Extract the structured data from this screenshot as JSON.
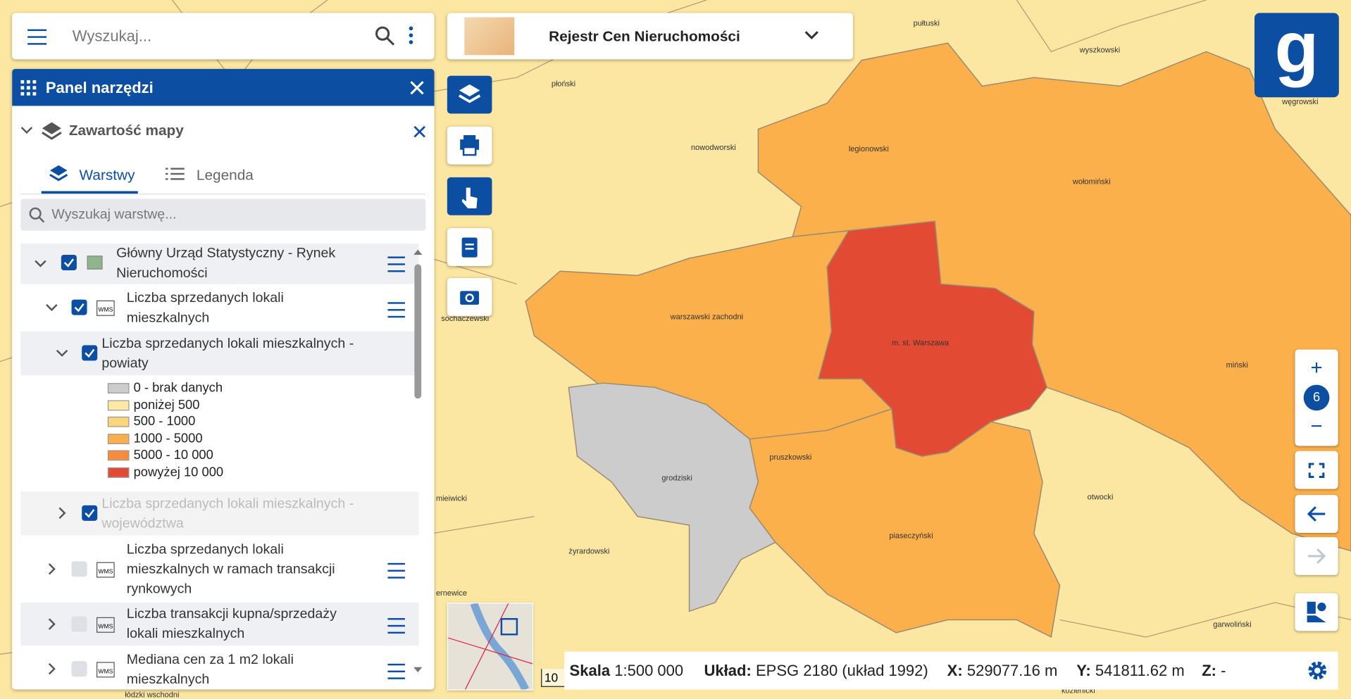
{
  "header": {
    "search_placeholder": "Wyszukaj...",
    "app_title": "Rejestr Cen Nieruchomości"
  },
  "panel": {
    "title": "Panel narzędzi",
    "section": "Zawartość mapy",
    "tabs": [
      "Warstwy",
      "Legenda"
    ],
    "layer_search": "Wyszukaj warstwę...",
    "layers": [
      "Główny Urząd Statystyczny - Rynek Nieruchomości",
      "Liczba sprzedanych lokali mieszkalnych",
      "Liczba sprzedanych lokali mieszkalnych - powiaty",
      "Liczba sprzedanych lokali mieszkalnych - województwa",
      "Liczba sprzedanych lokali mieszkalnych w ramach transakcji rynkowych",
      "Liczba transakcji kupna/sprzedaży lokali mieszkalnych",
      "Mediana cen za 1 m2 lokali mieszkalnych"
    ],
    "legend": [
      {
        "label": "0 - brak danych",
        "color": "#cccccc"
      },
      {
        "label": "poniżej 500",
        "color": "#fde9a3"
      },
      {
        "label": "500 - 1000",
        "color": "#fdd57a"
      },
      {
        "label": "1000 - 5000",
        "color": "#fbb04b"
      },
      {
        "label": "5000 - 10 000",
        "color": "#f78c3c"
      },
      {
        "label": "powyżej 10 000",
        "color": "#e34a33"
      }
    ]
  },
  "map": {
    "labels": [
      "płoński",
      "pułtuski",
      "wyszkowski",
      "węgrowski",
      "nowodworski",
      "legionowski",
      "wołomiński",
      "sochaczewski",
      "warszawski zachodni",
      "m. st. Warszawa",
      "miński",
      "grodziski",
      "pruszkowski",
      "otwocki",
      "żyrardowski",
      "piaseczyński",
      "garwoliński",
      "mieiwicki",
      "ernewice",
      "łódzki wschodni",
      "kozienicki"
    ],
    "zoom": "6",
    "scalebar": "10"
  },
  "status": {
    "scale_label": "Skala",
    "scale": "1:500 000",
    "crs_label": "Układ:",
    "crs": "EPSG 2180 (układ 1992)",
    "x_label": "X:",
    "x": "529077.16 m",
    "y_label": "Y:",
    "y": "541811.62 m",
    "z_label": "Z:",
    "z": "-"
  }
}
